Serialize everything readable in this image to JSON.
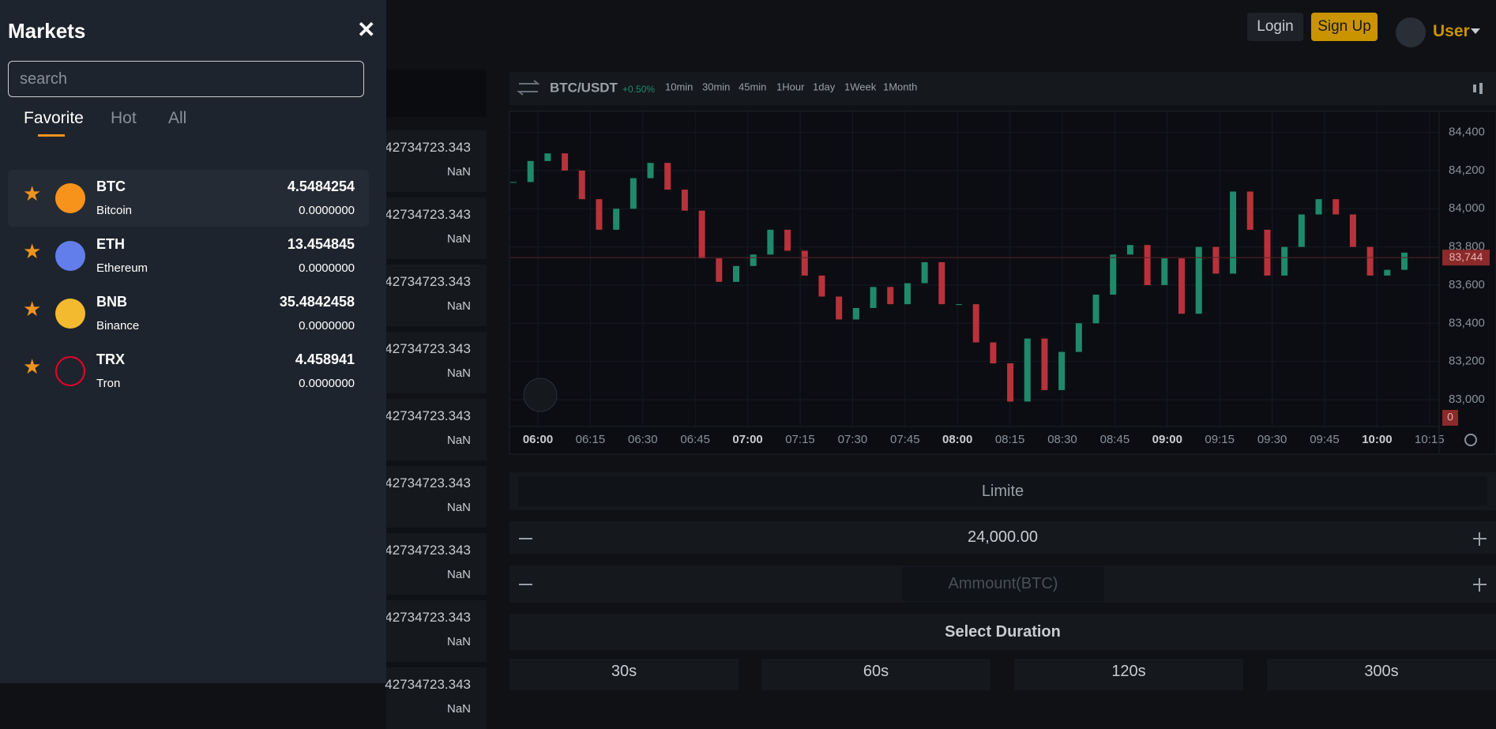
{
  "header": {
    "login": "Login",
    "signup": "Sign Up",
    "user": "User"
  },
  "markets": {
    "title": "Markets",
    "search_placeholder": "search",
    "tabs": [
      "Favorite",
      "Hot",
      "All"
    ],
    "items": [
      {
        "symbol": "BTC",
        "name": "Bitcoin",
        "price": "4.5484254",
        "change": "0.0000000"
      },
      {
        "symbol": "ETH",
        "name": "Ethereum",
        "price": "13.454845",
        "change": "0.0000000"
      },
      {
        "symbol": "BNB",
        "name": "Binance",
        "price": "35.4842458",
        "change": "0.0000000"
      },
      {
        "symbol": "TRX",
        "name": "Tron",
        "price": "4.458941",
        "change": "0.0000000"
      }
    ]
  },
  "order_book": {
    "rows": [
      {
        "price": "42734723.343",
        "amount": "NaN"
      },
      {
        "price": "42734723.343",
        "amount": "NaN"
      },
      {
        "price": "42734723.343",
        "amount": "NaN"
      },
      {
        "price": "42734723.343",
        "amount": "NaN"
      },
      {
        "price": "42734723.343",
        "amount": "NaN"
      },
      {
        "price": "42734723.343",
        "amount": "NaN"
      },
      {
        "price": "42734723.343",
        "amount": "NaN"
      },
      {
        "price": "42734723.343",
        "amount": "NaN"
      },
      {
        "price": "42734723.343",
        "amount": "NaN"
      }
    ]
  },
  "chart": {
    "type": "candlestick",
    "pair": "BTC/USDT",
    "change": "+0.50%",
    "intervals": [
      "10min",
      "30min",
      "45min",
      "1Hour",
      "1day",
      "1Week",
      "1Month"
    ],
    "closes": [
      84140,
      84250,
      84290,
      84200,
      84050,
      83890,
      84000,
      84160,
      84240,
      84100,
      83990,
      83740,
      83617,
      83700,
      83760,
      83890,
      83780,
      83650,
      83540,
      83420,
      83480,
      83590,
      83500,
      83610,
      83720,
      83500,
      83500,
      83300,
      83190,
      82990,
      83320,
      83050,
      83250,
      83400,
      83550,
      83760,
      83810,
      83600,
      83740,
      83450,
      83800,
      83660,
      84090,
      83890,
      83650,
      83800,
      83970,
      84050,
      83970,
      83800,
      83650,
      83680,
      83770
    ],
    "up_color": "#1f8a6a",
    "down_color": "#b8323b",
    "ylim": [
      82880,
      84510
    ],
    "yticks": [
      {
        "value": 84400,
        "label": "84,400"
      },
      {
        "value": 84200,
        "label": "84,200"
      },
      {
        "value": 84000,
        "label": "84,000"
      },
      {
        "value": 83800,
        "label": "83,800"
      },
      {
        "value": 83600,
        "label": "83,600"
      },
      {
        "value": 83400,
        "label": "83,400"
      },
      {
        "value": 83200,
        "label": "83,200"
      },
      {
        "value": 83000,
        "label": "83,000"
      }
    ],
    "xticks": [
      "06:00",
      "06:15",
      "06:30",
      "06:45",
      "07:00",
      "07:15",
      "07:30",
      "07:45",
      "08:00",
      "08:15",
      "08:30",
      "08:45",
      "09:00",
      "09:15",
      "09:30",
      "09:45",
      "10:00",
      "10:15"
    ],
    "last_price": {
      "value": 83744,
      "label": "83,744"
    },
    "volume_label": "0",
    "grid": true
  },
  "order_form": {
    "type": "Limite",
    "price": "24,000.00",
    "amount_placeholder": "Ammount(BTC)",
    "duration_title": "Select Duration",
    "durations": [
      "30s",
      "60s",
      "120s",
      "300s"
    ]
  }
}
